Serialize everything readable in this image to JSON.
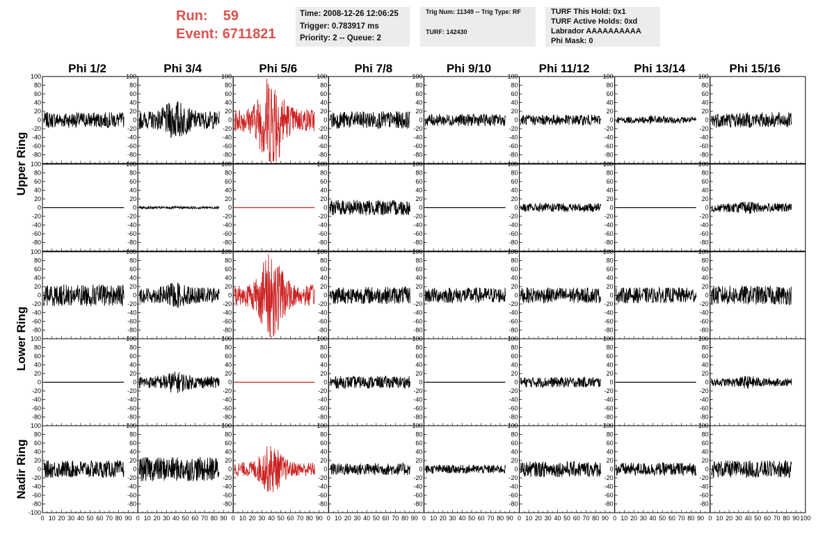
{
  "header": {
    "run_label": "Run:",
    "run_value": "59",
    "event_label": "Event:",
    "event_value": "6711821",
    "time_line": "Time: 2008-12-26 12:06:25",
    "trigger_line": "Trigger: 0.783917 ms",
    "priority_line": "Priority: 2 -- Queue: 2",
    "trig_line": "Trig Num: 11349 -- Trig Type: RF",
    "turf_line": "TURF: 142430",
    "turf_hold_line": "TURF This Hold: 0x1",
    "turf_active_line": "TURF Active Holds: 0xd",
    "labrador_line": "Labrador AAAAAAAAAA",
    "phimask_line": "Phi Mask: 0"
  },
  "chart_data": {
    "type": "line",
    "columns": [
      "Phi 1/2",
      "Phi 3/4",
      "Phi 5/6",
      "Phi 7/8",
      "Phi 9/10",
      "Phi 11/12",
      "Phi 13/14",
      "Phi 15/16"
    ],
    "ring_groups": [
      {
        "label": "Upper Ring",
        "rows": [
          0,
          1
        ]
      },
      {
        "label": "Lower Ring",
        "rows": [
          2,
          3
        ]
      },
      {
        "label": "Nadir Ring",
        "rows": [
          4
        ]
      }
    ],
    "xlim": [
      0,
      100
    ],
    "ylim": [
      -100,
      100
    ],
    "xticks": [
      0,
      10,
      20,
      30,
      40,
      50,
      60,
      70,
      80,
      90
    ],
    "yticks": [
      -100,
      -80,
      -60,
      -40,
      -20,
      0,
      20,
      40,
      60,
      80,
      100
    ],
    "colors": {
      "normal": "#000000",
      "trigger": "#cc2222"
    },
    "panels": [
      [
        {
          "amp": 18,
          "color": "normal",
          "burst": 0
        },
        {
          "amp": 45,
          "color": "normal",
          "burst": 0.6
        },
        {
          "amp": 60,
          "color": "trigger",
          "burst": 1.6
        },
        {
          "amp": 20,
          "color": "normal",
          "burst": 0
        },
        {
          "amp": 14,
          "color": "normal",
          "burst": 0
        },
        {
          "amp": 12,
          "color": "normal",
          "burst": 0
        },
        {
          "amp": 16,
          "color": "normal",
          "burst": 0.2
        },
        {
          "amp": 18,
          "color": "normal",
          "burst": 0
        }
      ],
      [
        {
          "amp": 0,
          "color": "normal",
          "burst": 0
        },
        {
          "amp": 3,
          "color": "normal",
          "burst": 0
        },
        {
          "amp": 0,
          "color": "trigger",
          "burst": 0
        },
        {
          "amp": 18,
          "color": "normal",
          "burst": 0
        },
        {
          "amp": 0,
          "color": "normal",
          "burst": 0
        },
        {
          "amp": 10,
          "color": "normal",
          "burst": 0
        },
        {
          "amp": 0,
          "color": "normal",
          "burst": 0
        },
        {
          "amp": 22,
          "color": "normal",
          "burst": 0.2
        }
      ],
      [
        {
          "amp": 25,
          "color": "normal",
          "burst": 0
        },
        {
          "amp": 40,
          "color": "normal",
          "burst": 0.3
        },
        {
          "amp": 55,
          "color": "trigger",
          "burst": 1.6
        },
        {
          "amp": 20,
          "color": "normal",
          "burst": 0
        },
        {
          "amp": 18,
          "color": "normal",
          "burst": 0
        },
        {
          "amp": 18,
          "color": "normal",
          "burst": 0
        },
        {
          "amp": 18,
          "color": "normal",
          "burst": 0
        },
        {
          "amp": 22,
          "color": "normal",
          "burst": 0
        }
      ],
      [
        {
          "amp": 0,
          "color": "normal",
          "burst": 0
        },
        {
          "amp": 30,
          "color": "normal",
          "burst": 0.4
        },
        {
          "amp": 0,
          "color": "trigger",
          "burst": 0
        },
        {
          "amp": 14,
          "color": "normal",
          "burst": 0
        },
        {
          "amp": 0,
          "color": "normal",
          "burst": 0
        },
        {
          "amp": 12,
          "color": "normal",
          "burst": 0
        },
        {
          "amp": 0,
          "color": "normal",
          "burst": 0
        },
        {
          "amp": 20,
          "color": "normal",
          "burst": 0.3
        }
      ],
      [
        {
          "amp": 20,
          "color": "normal",
          "burst": 0
        },
        {
          "amp": 28,
          "color": "normal",
          "burst": 0
        },
        {
          "amp": 35,
          "color": "trigger",
          "burst": 1.2
        },
        {
          "amp": 14,
          "color": "normal",
          "burst": 0
        },
        {
          "amp": 10,
          "color": "normal",
          "burst": 0
        },
        {
          "amp": 18,
          "color": "normal",
          "burst": 0
        },
        {
          "amp": 15,
          "color": "normal",
          "burst": 0
        },
        {
          "amp": 20,
          "color": "normal",
          "burst": 0
        }
      ]
    ]
  }
}
